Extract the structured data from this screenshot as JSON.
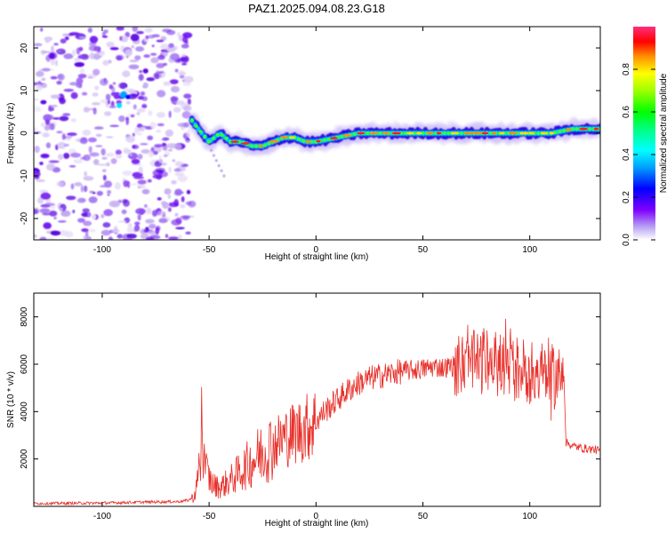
{
  "title": "PAZ1.2025.094.08.23.G18",
  "chart_data": [
    {
      "type": "heatmap",
      "xlabel": "Height of straight line (km)",
      "ylabel": "Frequency (Hz)",
      "xlim": [
        -132,
        133
      ],
      "ylim": [
        -25,
        25
      ],
      "xticks": [
        -100,
        -50,
        0,
        50,
        100
      ],
      "yticks": [
        -20,
        -10,
        0,
        10,
        20
      ],
      "colorbar": {
        "label": "Normalized spectral amplitude",
        "range": [
          0.0,
          1.0
        ],
        "ticks": [
          0.0,
          0.2,
          0.4,
          0.6,
          0.8
        ],
        "tick_labels": [
          "0.0",
          "0.2",
          "0.4",
          "0.6",
          "0.8"
        ]
      },
      "noise_region_x": [
        -132,
        -58
      ],
      "signal_ridge": {
        "x": [
          -58,
          -55,
          -50,
          -45,
          -40,
          -35,
          -30,
          -25,
          -20,
          -15,
          -10,
          -5,
          0,
          10,
          20,
          30,
          40,
          50,
          60,
          70,
          80,
          90,
          100,
          110,
          120,
          133
        ],
        "y": [
          3,
          1,
          -2,
          0,
          -2,
          -2,
          -3,
          -3,
          -2,
          -1,
          -1,
          -2,
          -2,
          -1,
          0,
          0,
          0,
          0,
          0,
          0,
          0,
          0,
          0,
          0,
          1,
          1
        ]
      }
    },
    {
      "type": "line",
      "xlabel": "Height of straight line (km)",
      "ylabel": "SNR (10 * v/v)",
      "xlim": [
        -132,
        133
      ],
      "ylim": [
        0,
        9000
      ],
      "xticks": [
        -100,
        -50,
        0,
        50,
        100
      ],
      "yticks": [
        2000,
        4000,
        6000,
        8000
      ],
      "color": "#e8302a",
      "series": [
        {
          "x": [
            -132,
            -120,
            -100,
            -80,
            -65,
            -60,
            -57,
            -55,
            -53,
            -50,
            -48,
            -45,
            -40,
            -35,
            -30,
            -25,
            -20,
            -15,
            -10,
            -5,
            0,
            5,
            10,
            15,
            20,
            25,
            30,
            35,
            40,
            45,
            50,
            55,
            60,
            65,
            70,
            75,
            80,
            85,
            90,
            95,
            100,
            105,
            110,
            115,
            116,
            117,
            120,
            125,
            130,
            133
          ],
          "y": [
            120,
            130,
            140,
            180,
            200,
            250,
            400,
            1200,
            2000,
            1200,
            900,
            800,
            1100,
            1500,
            1900,
            2300,
            2600,
            2900,
            3100,
            3300,
            3600,
            4100,
            4500,
            4900,
            5200,
            5400,
            5500,
            5600,
            5700,
            5750,
            5800,
            5900,
            5850,
            5950,
            6000,
            6050,
            6100,
            6000,
            5900,
            5800,
            5700,
            5600,
            5500,
            5400,
            5500,
            2700,
            2550,
            2450,
            2400,
            2350
          ]
        }
      ]
    }
  ]
}
